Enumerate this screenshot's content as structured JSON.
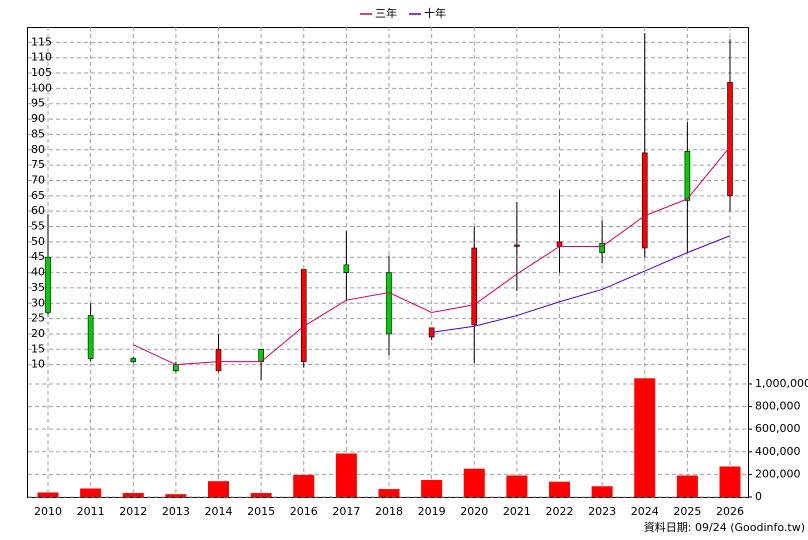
{
  "chart_data": {
    "type": "candlestick",
    "categories": [
      "2010",
      "2011",
      "2012",
      "2013",
      "2014",
      "2015",
      "2016",
      "2017",
      "2018",
      "2019",
      "2020",
      "2021",
      "2022",
      "2023",
      "2024",
      "2025",
      "2026"
    ],
    "candles": {
      "open": [
        45,
        26,
        12,
        10,
        8,
        15,
        11,
        42.5,
        40,
        19,
        23,
        48.5,
        48.5,
        49.5,
        48,
        79.5,
        65
      ],
      "high": [
        59,
        30,
        12.5,
        11,
        20,
        15,
        41,
        53.5,
        45.5,
        22,
        55,
        63,
        67,
        57,
        118,
        89,
        116
      ],
      "low": [
        26,
        11,
        10.5,
        7.5,
        7.5,
        5,
        9,
        31,
        13,
        18,
        10.5,
        34,
        40,
        43,
        45,
        46.5,
        60
      ],
      "close": [
        27,
        12,
        11,
        8,
        15,
        11,
        41,
        40,
        20,
        22,
        48,
        49,
        50,
        46.5,
        79,
        63.5,
        102
      ],
      "up_color": "#ff0000",
      "down_color": "#00cc00"
    },
    "series": [
      {
        "name": "三年",
        "color": "#cc0066",
        "values": [
          null,
          null,
          16.5,
          10,
          11,
          11,
          22.5,
          31,
          33.5,
          27,
          29.5,
          39.5,
          48.5,
          48.5,
          58.5,
          64,
          81
        ]
      },
      {
        "name": "十年",
        "color": "#5500bb",
        "values": [
          null,
          null,
          null,
          null,
          null,
          null,
          null,
          null,
          null,
          20.5,
          22.5,
          26,
          30.5,
          34.5,
          40.5,
          46.5,
          52
        ]
      }
    ],
    "volume": {
      "color": "#ff0000",
      "axis": "y2",
      "values": [
        40000,
        75000,
        35000,
        25000,
        140000,
        35000,
        195000,
        385000,
        70000,
        150000,
        250000,
        190000,
        135000,
        95000,
        1050000,
        190000,
        270000
      ]
    },
    "ylim": [
      5,
      120
    ],
    "yticks": [
      10,
      15,
      20,
      25,
      30,
      35,
      40,
      45,
      50,
      55,
      60,
      65,
      70,
      75,
      80,
      85,
      90,
      95,
      100,
      105,
      110,
      115
    ],
    "y2lim": [
      0,
      1035000
    ],
    "y2ticks": [
      0,
      {
        "value": 200000,
        "label": "200,000"
      },
      {
        "value": 400000,
        "label": "400,000"
      },
      {
        "value": 600000,
        "label": "600,000"
      },
      {
        "value": 800000,
        "label": "800,000"
      },
      {
        "value": 1000000,
        "label": "1,000,000"
      }
    ],
    "grid": true,
    "legend": "top",
    "source": "資料日期: 09/24 (Goodinfo.tw)"
  }
}
